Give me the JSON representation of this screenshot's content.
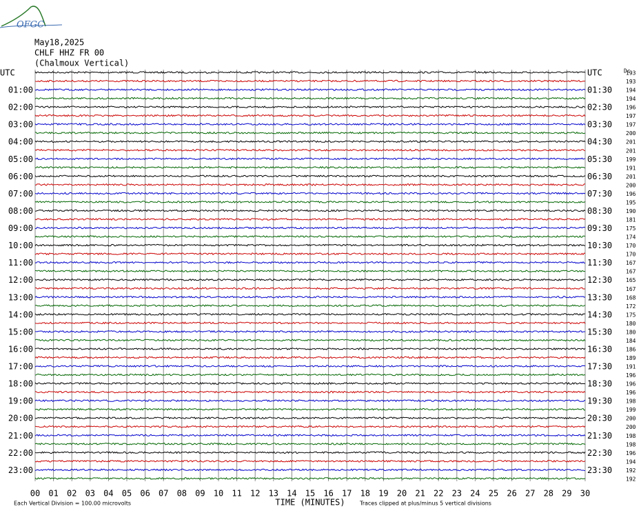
{
  "logo": "OFGC",
  "header": [
    "May18,2025",
    "CHLF HHZ FR 00",
    "(Chalmoux Vertical)"
  ],
  "left_labels": [
    "UTC",
    "01:00",
    "02:00",
    "03:00",
    "04:00",
    "05:00",
    "06:00",
    "07:00",
    "08:00",
    "09:00",
    "10:00",
    "11:00",
    "12:00",
    "13:00",
    "14:00",
    "15:00",
    "16:00",
    "17:00",
    "18:00",
    "19:00",
    "20:00",
    "21:00",
    "22:00",
    "23:00"
  ],
  "right_labels": [
    "UTC",
    "01:30",
    "02:30",
    "03:30",
    "04:30",
    "05:30",
    "06:30",
    "07:30",
    "08:30",
    "09:30",
    "10:30",
    "11:30",
    "12:30",
    "13:30",
    "14:30",
    "15:30",
    "16:30",
    "17:30",
    "18:30",
    "19:30",
    "20:30",
    "21:30",
    "22:30",
    "23:30"
  ],
  "right_header": "Dc",
  "right_values": [
    "193",
    "193",
    "194",
    "194",
    "196",
    "197",
    "197",
    "200",
    "201",
    "201",
    "199",
    "191",
    "201",
    "200",
    "196",
    "195",
    "190",
    "181",
    "175",
    "174",
    "170",
    "170",
    "167",
    "167",
    "165",
    "167",
    "168",
    "172",
    "175",
    "180",
    "180",
    "184",
    "186",
    "189",
    "191",
    "196",
    "196",
    "196",
    "198",
    "199",
    "200",
    "200",
    "198",
    "198",
    "196",
    "194",
    "192",
    "192"
  ],
  "x_ticks": [
    "00",
    "01",
    "02",
    "03",
    "04",
    "05",
    "06",
    "07",
    "08",
    "09",
    "10",
    "11",
    "12",
    "13",
    "14",
    "15",
    "16",
    "17",
    "18",
    "19",
    "20",
    "21",
    "22",
    "23",
    "24",
    "25",
    "26",
    "27",
    "28",
    "29",
    "30"
  ],
  "x_label": "TIME (MINUTES)",
  "footer_left": "Each Vertical Division =  100.00 microvolts",
  "footer_right": "Traces clipped at plus/minus 5 vertical divisions",
  "trace_colors": [
    "#000000",
    "#cc0000",
    "#0000cc",
    "#006600"
  ]
}
